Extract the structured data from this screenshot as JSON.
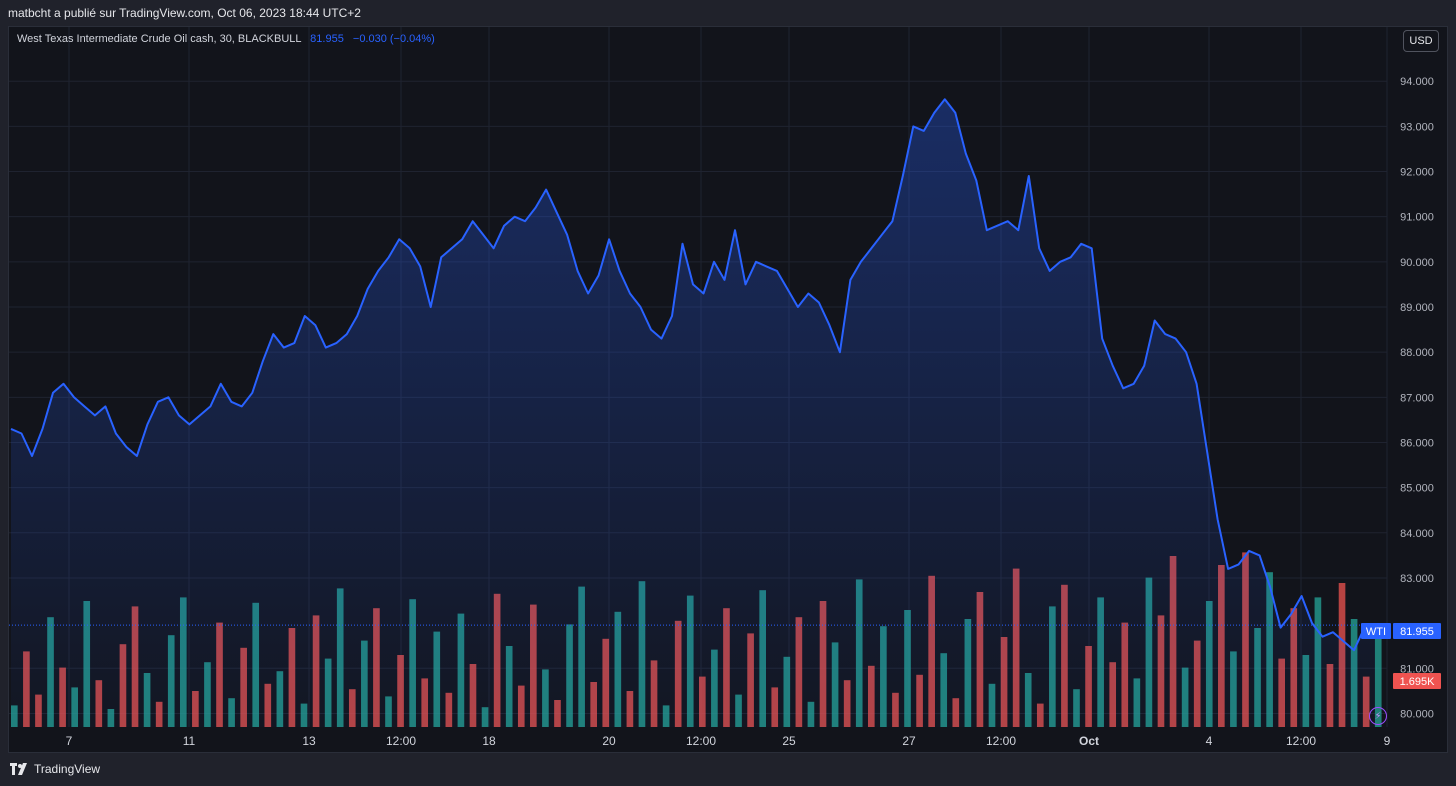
{
  "header": {
    "text": "matbcht a publié sur TradingView.com, Oct 06, 2023 18:44 UTC+2"
  },
  "legend": {
    "symbol": "West Texas Intermediate Crude Oil cash, 30, BLACKBULL",
    "value": "81.955",
    "change": "−0.030 (−0.04%)"
  },
  "currency_label": "USD",
  "footer": {
    "brand": "TradingView"
  },
  "icons": {
    "brand_logo": "tradingview-logo-icon",
    "bolt": "bolt-icon"
  },
  "colors": {
    "line": "#2962ff",
    "bar_up": "#26a69a",
    "bar_down": "#ef5350",
    "background": "#12141b"
  },
  "chart_data": {
    "type": "area",
    "title": "West Texas Intermediate Crude Oil cash, 30, BLACKBULL",
    "x_ticks": [
      "7",
      "11",
      "13",
      "12:00",
      "18",
      "20",
      "12:00",
      "25",
      "27",
      "12:00",
      "Oct",
      "4",
      "12:00",
      "9"
    ],
    "y_ticks": [
      "94.000",
      "93.000",
      "92.000",
      "91.000",
      "90.000",
      "89.000",
      "88.000",
      "87.000",
      "86.000",
      "85.000",
      "84.000",
      "83.000",
      "81.000",
      "80.000"
    ],
    "ylim": [
      79.7,
      95.2
    ],
    "grid": true,
    "series": [
      {
        "values": [
          86.3,
          86.2,
          85.7,
          86.3,
          87.1,
          87.3,
          87.0,
          86.8,
          86.6,
          86.8,
          86.2,
          85.9,
          85.7,
          86.4,
          86.9,
          87.0,
          86.6,
          86.4,
          86.6,
          86.8,
          87.3,
          86.9,
          86.8,
          87.1,
          87.8,
          88.4,
          88.1,
          88.2,
          88.8,
          88.6,
          88.1,
          88.2,
          88.4,
          88.8,
          89.4,
          89.8,
          90.1,
          90.5,
          90.3,
          89.9,
          89.0,
          90.1,
          90.3,
          90.5,
          90.9,
          90.6,
          90.3,
          90.8,
          91.0,
          90.9,
          91.2,
          91.6,
          91.1,
          90.6,
          89.8,
          89.3,
          89.7,
          90.5,
          89.8,
          89.3,
          89.0,
          88.5,
          88.3,
          88.8,
          90.4,
          89.5,
          89.3,
          90.0,
          89.6,
          90.7,
          89.5,
          90.0,
          89.9,
          89.8,
          89.4,
          89.0,
          89.3,
          89.1,
          88.6,
          88.0,
          89.6,
          90.0,
          90.3,
          90.6,
          90.9,
          91.9,
          93.0,
          92.9,
          93.3,
          93.6,
          93.3,
          92.4,
          91.8,
          90.7,
          90.8,
          90.9,
          90.7,
          91.9,
          90.3,
          89.8,
          90.0,
          90.1,
          90.4,
          90.3,
          88.3,
          87.7,
          87.2,
          87.3,
          87.7,
          88.7,
          88.4,
          88.3,
          88.0,
          87.3,
          85.8,
          84.3,
          83.2,
          83.3,
          83.6,
          83.5,
          82.8,
          81.9,
          82.2,
          82.6,
          82.0,
          81.7,
          81.8,
          81.6,
          81.4,
          81.9,
          81.955
        ]
      }
    ],
    "volume": [
      {
        "v": 0.12,
        "up": true
      },
      {
        "v": 0.42,
        "up": false
      },
      {
        "v": 0.18,
        "up": false
      },
      {
        "v": 0.61,
        "up": true
      },
      {
        "v": 0.33,
        "up": false
      },
      {
        "v": 0.22,
        "up": true
      },
      {
        "v": 0.7,
        "up": true
      },
      {
        "v": 0.26,
        "up": false
      },
      {
        "v": 0.1,
        "up": true
      },
      {
        "v": 0.46,
        "up": false
      },
      {
        "v": 0.67,
        "up": false
      },
      {
        "v": 0.3,
        "up": true
      },
      {
        "v": 0.14,
        "up": false
      },
      {
        "v": 0.51,
        "up": true
      },
      {
        "v": 0.72,
        "up": true
      },
      {
        "v": 0.2,
        "up": false
      },
      {
        "v": 0.36,
        "up": true
      },
      {
        "v": 0.58,
        "up": false
      },
      {
        "v": 0.16,
        "up": true
      },
      {
        "v": 0.44,
        "up": false
      },
      {
        "v": 0.69,
        "up": true
      },
      {
        "v": 0.24,
        "up": false
      },
      {
        "v": 0.31,
        "up": true
      },
      {
        "v": 0.55,
        "up": false
      },
      {
        "v": 0.13,
        "up": true
      },
      {
        "v": 0.62,
        "up": false
      },
      {
        "v": 0.38,
        "up": true
      },
      {
        "v": 0.77,
        "up": true
      },
      {
        "v": 0.21,
        "up": false
      },
      {
        "v": 0.48,
        "up": true
      },
      {
        "v": 0.66,
        "up": false
      },
      {
        "v": 0.17,
        "up": true
      },
      {
        "v": 0.4,
        "up": false
      },
      {
        "v": 0.71,
        "up": true
      },
      {
        "v": 0.27,
        "up": false
      },
      {
        "v": 0.53,
        "up": true
      },
      {
        "v": 0.19,
        "up": false
      },
      {
        "v": 0.63,
        "up": true
      },
      {
        "v": 0.35,
        "up": false
      },
      {
        "v": 0.11,
        "up": true
      },
      {
        "v": 0.74,
        "up": false
      },
      {
        "v": 0.45,
        "up": true
      },
      {
        "v": 0.23,
        "up": false
      },
      {
        "v": 0.68,
        "up": false
      },
      {
        "v": 0.32,
        "up": true
      },
      {
        "v": 0.15,
        "up": false
      },
      {
        "v": 0.57,
        "up": true
      },
      {
        "v": 0.78,
        "up": true
      },
      {
        "v": 0.25,
        "up": false
      },
      {
        "v": 0.49,
        "up": false
      },
      {
        "v": 0.64,
        "up": true
      },
      {
        "v": 0.2,
        "up": false
      },
      {
        "v": 0.81,
        "up": true
      },
      {
        "v": 0.37,
        "up": false
      },
      {
        "v": 0.12,
        "up": true
      },
      {
        "v": 0.59,
        "up": false
      },
      {
        "v": 0.73,
        "up": true
      },
      {
        "v": 0.28,
        "up": false
      },
      {
        "v": 0.43,
        "up": true
      },
      {
        "v": 0.66,
        "up": false
      },
      {
        "v": 0.18,
        "up": true
      },
      {
        "v": 0.52,
        "up": false
      },
      {
        "v": 0.76,
        "up": true
      },
      {
        "v": 0.22,
        "up": false
      },
      {
        "v": 0.39,
        "up": true
      },
      {
        "v": 0.61,
        "up": false
      },
      {
        "v": 0.14,
        "up": true
      },
      {
        "v": 0.7,
        "up": false
      },
      {
        "v": 0.47,
        "up": true
      },
      {
        "v": 0.26,
        "up": false
      },
      {
        "v": 0.82,
        "up": true
      },
      {
        "v": 0.34,
        "up": false
      },
      {
        "v": 0.56,
        "up": true
      },
      {
        "v": 0.19,
        "up": false
      },
      {
        "v": 0.65,
        "up": true
      },
      {
        "v": 0.29,
        "up": false
      },
      {
        "v": 0.84,
        "up": false
      },
      {
        "v": 0.41,
        "up": true
      },
      {
        "v": 0.16,
        "up": false
      },
      {
        "v": 0.6,
        "up": true
      },
      {
        "v": 0.75,
        "up": false
      },
      {
        "v": 0.24,
        "up": true
      },
      {
        "v": 0.5,
        "up": false
      },
      {
        "v": 0.88,
        "up": false
      },
      {
        "v": 0.3,
        "up": true
      },
      {
        "v": 0.13,
        "up": false
      },
      {
        "v": 0.67,
        "up": true
      },
      {
        "v": 0.79,
        "up": false
      },
      {
        "v": 0.21,
        "up": true
      },
      {
        "v": 0.45,
        "up": false
      },
      {
        "v": 0.72,
        "up": true
      },
      {
        "v": 0.36,
        "up": false
      },
      {
        "v": 0.58,
        "up": false
      },
      {
        "v": 0.27,
        "up": true
      },
      {
        "v": 0.83,
        "up": true
      },
      {
        "v": 0.62,
        "up": false
      },
      {
        "v": 0.95,
        "up": false
      },
      {
        "v": 0.33,
        "up": true
      },
      {
        "v": 0.48,
        "up": false
      },
      {
        "v": 0.7,
        "up": true
      },
      {
        "v": 0.9,
        "up": false
      },
      {
        "v": 0.42,
        "up": true
      },
      {
        "v": 0.97,
        "up": false
      },
      {
        "v": 0.55,
        "up": true
      },
      {
        "v": 0.86,
        "up": true
      },
      {
        "v": 0.38,
        "up": false
      },
      {
        "v": 0.66,
        "up": false
      },
      {
        "v": 0.4,
        "up": true
      },
      {
        "v": 0.72,
        "up": true
      },
      {
        "v": 0.35,
        "up": false
      },
      {
        "v": 0.8,
        "up": false
      },
      {
        "v": 0.6,
        "up": true
      },
      {
        "v": 0.28,
        "up": false
      },
      {
        "v": 0.52,
        "up": true
      }
    ]
  }
}
